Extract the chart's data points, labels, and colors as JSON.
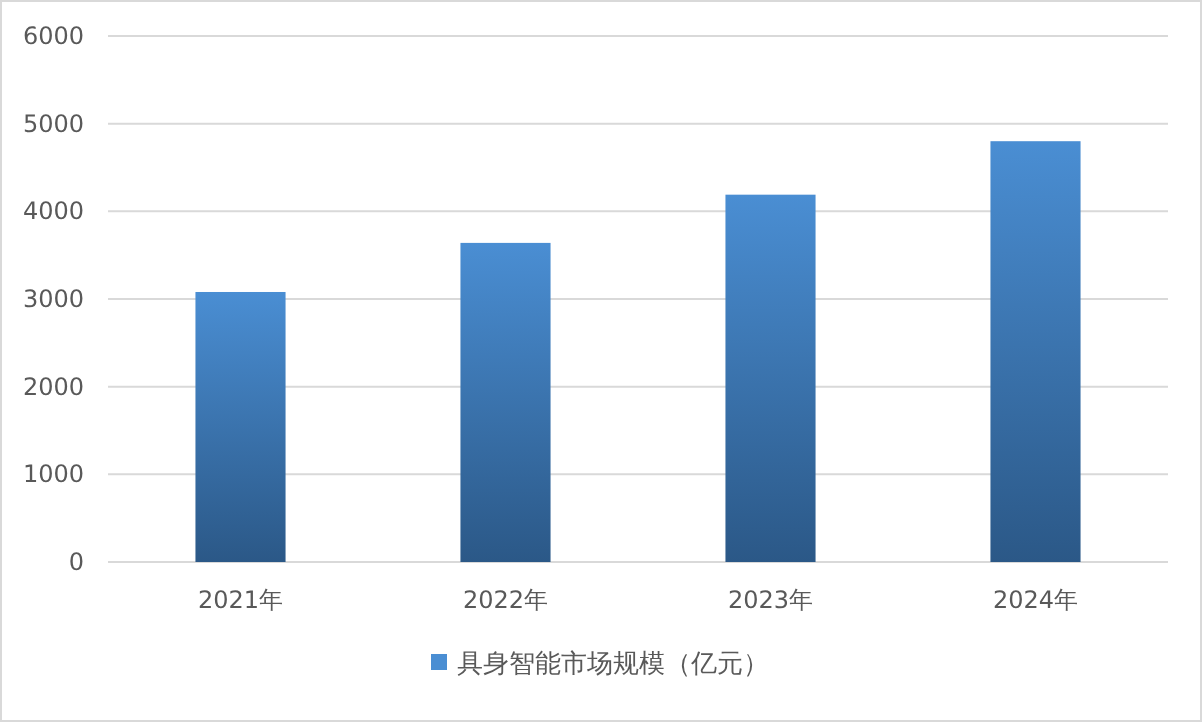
{
  "chart_data": {
    "type": "bar",
    "categories": [
      "2021年",
      "2022年",
      "2023年",
      "2024年"
    ],
    "series": [
      {
        "name": "具身智能市场规模（亿元）",
        "color": "#4a8ed3",
        "values": [
          3080,
          3640,
          4190,
          4800
        ]
      }
    ],
    "ylim": [
      0,
      6000
    ],
    "yticks": [
      0,
      1000,
      2000,
      3000,
      4000,
      5000,
      6000
    ],
    "grid": "y",
    "legend": "bottom"
  }
}
